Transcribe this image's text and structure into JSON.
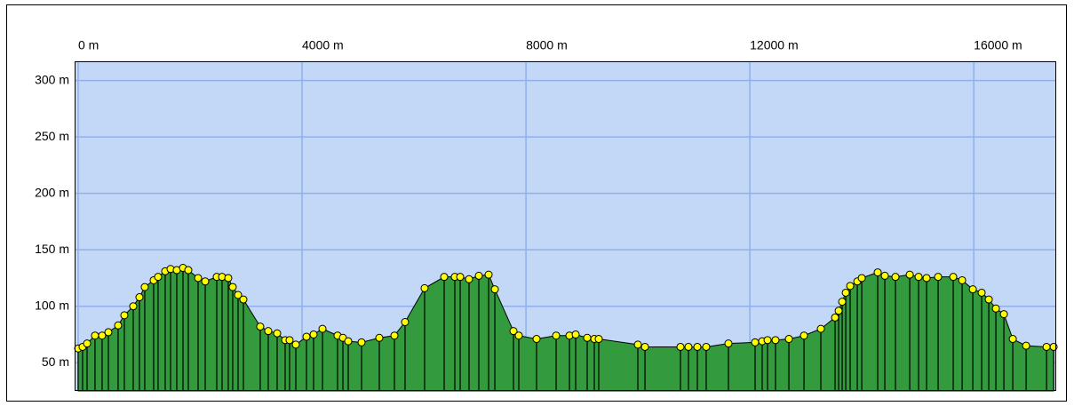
{
  "chart_data": {
    "type": "area",
    "x": [
      0,
      79,
      159,
      301,
      428,
      540,
      714,
      825,
      984,
      1095,
      1190,
      1349,
      1428,
      1555,
      1651,
      1762,
      1873,
      1968,
      2143,
      2270,
      2476,
      2571,
      2682,
      2761,
      2857,
      2952,
      3253,
      3396,
      3555,
      3698,
      3777,
      3889,
      4079,
      4206,
      4365,
      4634,
      4730,
      4825,
      5063,
      5380,
      5650,
      5840,
      6189,
      6539,
      6729,
      6825,
      6983,
      7158,
      7333,
      7444,
      7777,
      7872,
      8189,
      8539,
      8777,
      8888,
      9094,
      9221,
      9300,
      9999,
      10126,
      10760,
      10903,
      11062,
      11220,
      11617,
      12093,
      12220,
      12316,
      12458,
      12697,
      12967,
      13268,
      13522,
      13586,
      13649,
      13713,
      13792,
      13919,
      13999,
      14284,
      14411,
      14601,
      14856,
      15014,
      15157,
      15363,
      15633,
      15792,
      15983,
      16141,
      16268,
      16395,
      16538,
      16697,
      16935,
      17300,
      17427
    ],
    "values": [
      62.6,
      64,
      67,
      74,
      74,
      77,
      83,
      92,
      100,
      108,
      117,
      123,
      126,
      131,
      133,
      132,
      134,
      132,
      125,
      122,
      126,
      126,
      125,
      117,
      110,
      106,
      82,
      78,
      76,
      70,
      70,
      66,
      73,
      75,
      80,
      74,
      72,
      69,
      68,
      72,
      74,
      86,
      116,
      126,
      126,
      126,
      124,
      127,
      128,
      115,
      78,
      74,
      71,
      74,
      74,
      75,
      72,
      71,
      71,
      66,
      64,
      64,
      64,
      64,
      64,
      67,
      68,
      69,
      70,
      70,
      71,
      74,
      80,
      90,
      96,
      104,
      112,
      118,
      122,
      125,
      130,
      127,
      126,
      128,
      126,
      125,
      126,
      126,
      123,
      115,
      112,
      106,
      98,
      93,
      71,
      65,
      64,
      64
    ],
    "color": "#339a3e",
    "marker_color": "#ffff00",
    "xlim": [
      -63,
      17473
    ],
    "ylim": [
      25,
      317
    ],
    "xticks": [
      {
        "value": 0,
        "label": "0 m"
      },
      {
        "value": 4000,
        "label": "4000 m"
      },
      {
        "value": 8000,
        "label": "8000 m"
      },
      {
        "value": 12000,
        "label": "12000 m"
      },
      {
        "value": 16000,
        "label": "16000 m"
      }
    ],
    "yticks": [
      {
        "value": 50,
        "label": "50 m"
      },
      {
        "value": 100,
        "label": "100 m"
      },
      {
        "value": 150,
        "label": "150 m"
      },
      {
        "value": 200,
        "label": "200 m"
      },
      {
        "value": 250,
        "label": "250 m"
      },
      {
        "value": 300,
        "label": "300 m"
      }
    ],
    "grid": true
  }
}
